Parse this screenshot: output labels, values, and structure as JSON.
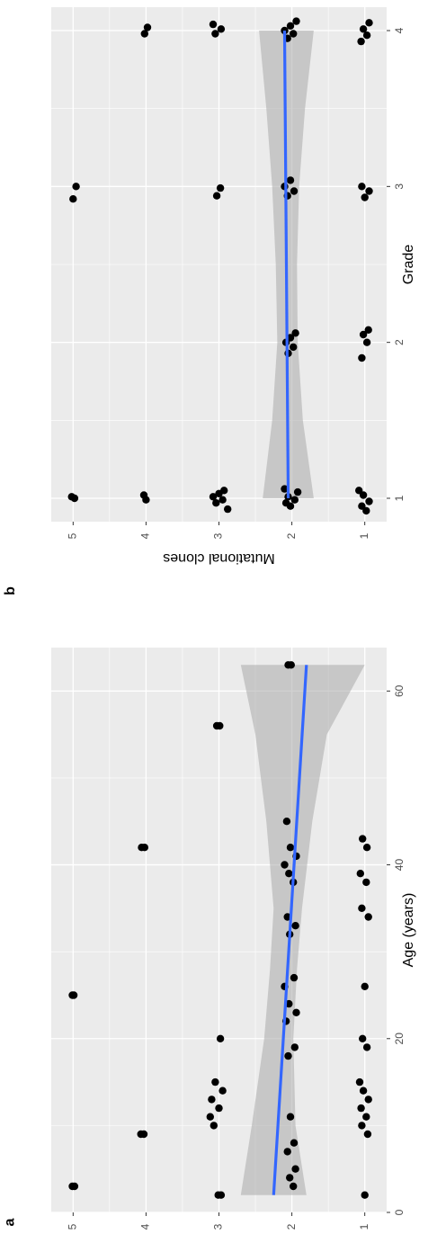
{
  "panel_a": {
    "letter": "a"
  },
  "panel_b": {
    "letter": "b"
  },
  "colors": {
    "panel_bg": "#ebebeb",
    "grid": "#ffffff",
    "points": "#000000",
    "fit_line": "#3366ff",
    "ribbon": "#a9a9a9",
    "axis_text": "#4d4d4d"
  },
  "chart_data": [
    {
      "type": "scatter",
      "title": "",
      "xlabel": "Age (years)",
      "ylabel": "Mutational clones",
      "xlim": [
        0,
        65
      ],
      "ylim": [
        0.7,
        5.3
      ],
      "x_ticks": [
        "0",
        "20",
        "40",
        "60"
      ],
      "y_ticks": [
        "1",
        "2",
        "3",
        "4",
        "5"
      ],
      "grid": true,
      "trend": {
        "x0": 2,
        "y0": 2.25,
        "x1": 63,
        "y1": 1.8
      },
      "ribbon": {
        "x": [
          2,
          10,
          20,
          28,
          35,
          45,
          55,
          63
        ],
        "lower": [
          1.8,
          1.95,
          1.98,
          1.93,
          1.86,
          1.72,
          1.52,
          1.0
        ],
        "upper": [
          2.7,
          2.55,
          2.38,
          2.3,
          2.25,
          2.35,
          2.5,
          2.7
        ]
      },
      "points": [
        {
          "x": 3,
          "y": 4.98
        },
        {
          "x": 3,
          "y": 5.01
        },
        {
          "x": 25,
          "y": 4.99
        },
        {
          "x": 25,
          "y": 5.01
        },
        {
          "x": 9,
          "y": 4.03
        },
        {
          "x": 9,
          "y": 4.07
        },
        {
          "x": 42,
          "y": 4.02
        },
        {
          "x": 42,
          "y": 4.06
        },
        {
          "x": 2,
          "y": 2.97
        },
        {
          "x": 2,
          "y": 3.01
        },
        {
          "x": 10,
          "y": 3.07
        },
        {
          "x": 11,
          "y": 3.12
        },
        {
          "x": 12,
          "y": 3.0
        },
        {
          "x": 13,
          "y": 3.1
        },
        {
          "x": 14,
          "y": 2.95
        },
        {
          "x": 15,
          "y": 3.05
        },
        {
          "x": 20,
          "y": 2.98
        },
        {
          "x": 56,
          "y": 2.99
        },
        {
          "x": 56,
          "y": 3.03
        },
        {
          "x": 3,
          "y": 1.98
        },
        {
          "x": 4,
          "y": 2.03
        },
        {
          "x": 5,
          "y": 1.95
        },
        {
          "x": 7,
          "y": 2.06
        },
        {
          "x": 8,
          "y": 1.97
        },
        {
          "x": 11,
          "y": 2.02
        },
        {
          "x": 18,
          "y": 2.05
        },
        {
          "x": 19,
          "y": 1.96
        },
        {
          "x": 22,
          "y": 2.08
        },
        {
          "x": 23,
          "y": 1.94
        },
        {
          "x": 24,
          "y": 2.04
        },
        {
          "x": 26,
          "y": 2.1
        },
        {
          "x": 27,
          "y": 1.97
        },
        {
          "x": 32,
          "y": 2.03
        },
        {
          "x": 33,
          "y": 1.95
        },
        {
          "x": 34,
          "y": 2.06
        },
        {
          "x": 38,
          "y": 1.98
        },
        {
          "x": 39,
          "y": 2.04
        },
        {
          "x": 40,
          "y": 2.1
        },
        {
          "x": 41,
          "y": 1.94
        },
        {
          "x": 42,
          "y": 2.02
        },
        {
          "x": 45,
          "y": 2.07
        },
        {
          "x": 63,
          "y": 2.05
        },
        {
          "x": 63,
          "y": 2.01
        },
        {
          "x": 2,
          "y": 1.0
        },
        {
          "x": 9,
          "y": 0.96
        },
        {
          "x": 10,
          "y": 1.04
        },
        {
          "x": 11,
          "y": 0.98
        },
        {
          "x": 12,
          "y": 1.05
        },
        {
          "x": 13,
          "y": 0.95
        },
        {
          "x": 14,
          "y": 1.02
        },
        {
          "x": 15,
          "y": 1.07
        },
        {
          "x": 19,
          "y": 0.97
        },
        {
          "x": 20,
          "y": 1.03
        },
        {
          "x": 26,
          "y": 1.0
        },
        {
          "x": 34,
          "y": 0.95
        },
        {
          "x": 35,
          "y": 1.04
        },
        {
          "x": 38,
          "y": 0.98
        },
        {
          "x": 39,
          "y": 1.06
        },
        {
          "x": 42,
          "y": 0.97
        },
        {
          "x": 43,
          "y": 1.03
        }
      ]
    },
    {
      "type": "scatter",
      "title": "",
      "xlabel": "Grade",
      "ylabel": "Mutational clones",
      "xlim": [
        0.85,
        4.15
      ],
      "ylim": [
        0.7,
        5.3
      ],
      "x_ticks": [
        "1",
        "2",
        "3",
        "4"
      ],
      "y_ticks": [
        "1",
        "2",
        "3",
        "4",
        "5"
      ],
      "grid": true,
      "trend": {
        "x0": 1,
        "y0": 2.05,
        "x1": 4,
        "y1": 2.1
      },
      "ribbon": {
        "x": [
          1,
          1.5,
          2,
          2.5,
          3,
          3.5,
          4
        ],
        "lower": [
          1.7,
          1.85,
          1.92,
          1.93,
          1.9,
          1.82,
          1.7
        ],
        "upper": [
          2.4,
          2.27,
          2.2,
          2.22,
          2.27,
          2.35,
          2.45
        ]
      },
      "points": [
        {
          "x": 1.0,
          "y": 4.98
        },
        {
          "x": 1.01,
          "y": 5.02
        },
        {
          "x": 0.99,
          "y": 4.0
        },
        {
          "x": 1.02,
          "y": 4.03
        },
        {
          "x": 0.93,
          "y": 2.88
        },
        {
          "x": 0.97,
          "y": 3.04
        },
        {
          "x": 0.99,
          "y": 2.95
        },
        {
          "x": 1.01,
          "y": 3.08
        },
        {
          "x": 1.03,
          "y": 3.0
        },
        {
          "x": 1.05,
          "y": 2.93
        },
        {
          "x": 0.95,
          "y": 2.02
        },
        {
          "x": 0.97,
          "y": 2.08
        },
        {
          "x": 0.99,
          "y": 1.96
        },
        {
          "x": 1.01,
          "y": 2.05
        },
        {
          "x": 1.04,
          "y": 1.92
        },
        {
          "x": 1.06,
          "y": 2.1
        },
        {
          "x": 0.92,
          "y": 0.98
        },
        {
          "x": 0.95,
          "y": 1.04
        },
        {
          "x": 0.98,
          "y": 0.94
        },
        {
          "x": 1.02,
          "y": 1.02
        },
        {
          "x": 1.05,
          "y": 1.08
        },
        {
          "x": 1.93,
          "y": 2.05
        },
        {
          "x": 1.97,
          "y": 1.98
        },
        {
          "x": 2.0,
          "y": 2.08
        },
        {
          "x": 2.03,
          "y": 2.02
        },
        {
          "x": 2.06,
          "y": 1.95
        },
        {
          "x": 1.9,
          "y": 1.04
        },
        {
          "x": 2.0,
          "y": 0.97
        },
        {
          "x": 2.05,
          "y": 1.02
        },
        {
          "x": 2.08,
          "y": 0.95
        },
        {
          "x": 2.92,
          "y": 5.0
        },
        {
          "x": 3.0,
          "y": 4.96
        },
        {
          "x": 2.94,
          "y": 3.03
        },
        {
          "x": 2.99,
          "y": 2.98
        },
        {
          "x": 2.94,
          "y": 2.06
        },
        {
          "x": 2.97,
          "y": 1.97
        },
        {
          "x": 3.0,
          "y": 2.1
        },
        {
          "x": 3.04,
          "y": 2.02
        },
        {
          "x": 2.93,
          "y": 1.0
        },
        {
          "x": 2.97,
          "y": 0.94
        },
        {
          "x": 3.0,
          "y": 1.04
        },
        {
          "x": 3.98,
          "y": 4.02
        },
        {
          "x": 4.02,
          "y": 3.98
        },
        {
          "x": 3.98,
          "y": 3.05
        },
        {
          "x": 4.01,
          "y": 2.97
        },
        {
          "x": 4.04,
          "y": 3.08
        },
        {
          "x": 3.95,
          "y": 2.06
        },
        {
          "x": 3.98,
          "y": 1.98
        },
        {
          "x": 4.0,
          "y": 2.1
        },
        {
          "x": 4.03,
          "y": 2.02
        },
        {
          "x": 4.06,
          "y": 1.94
        },
        {
          "x": 3.93,
          "y": 1.05
        },
        {
          "x": 3.97,
          "y": 0.97
        },
        {
          "x": 4.01,
          "y": 1.02
        },
        {
          "x": 4.05,
          "y": 0.94
        }
      ]
    }
  ]
}
